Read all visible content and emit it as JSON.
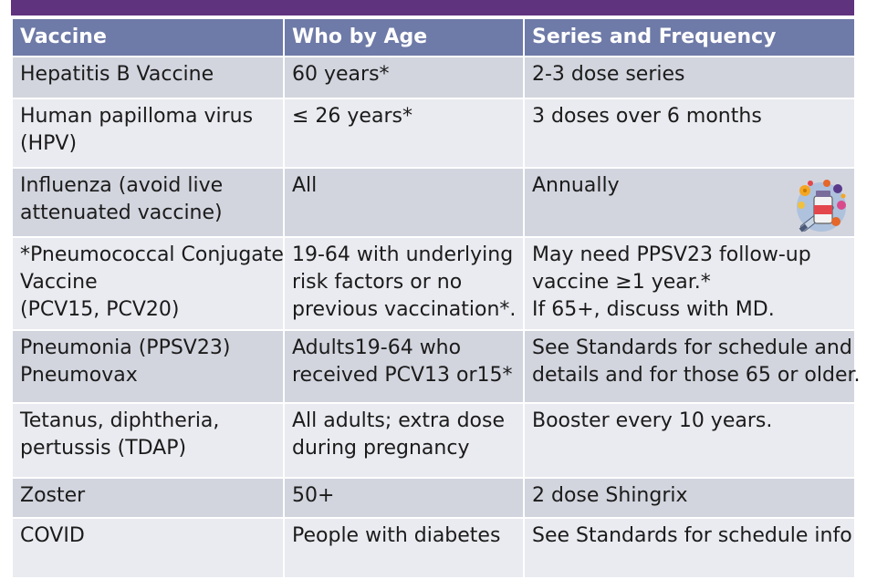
{
  "header": {
    "vaccine": "Vaccine",
    "who_by_age": "Who by Age",
    "series": "Series and Frequency"
  },
  "rows": [
    {
      "vaccine": [
        "Hepatitis B Vaccine"
      ],
      "who": [
        "60 years*"
      ],
      "series": [
        "2-3 dose series"
      ]
    },
    {
      "vaccine": [
        "Human papilloma virus",
        "(HPV)"
      ],
      "who": [
        "≤ 26 years*"
      ],
      "series": [
        "3 doses over 6 months"
      ]
    },
    {
      "vaccine": [
        "Influenza (avoid live",
        "attenuated vaccine)"
      ],
      "who": [
        "All"
      ],
      "series": [
        "Annually"
      ],
      "icon": "vaccine-vial-syringe-icon"
    },
    {
      "vaccine": [
        "*Pneumococcal Conjugate",
        "Vaccine",
        "(PCV15, PCV20)"
      ],
      "who": [
        "19-64 with underlying",
        "risk factors or no",
        "previous vaccination*."
      ],
      "series": [
        "May need PPSV23 follow-up",
        "vaccine ≥1 year.*",
        "If 65+, discuss with MD."
      ]
    },
    {
      "vaccine": [
        "Pneumonia (PPSV23)",
        "Pneumovax"
      ],
      "who": [
        "Adults19-64 who",
        "received PCV13 or15*"
      ],
      "series": [
        "See Standards for schedule and",
        "details and for those 65 or older."
      ]
    },
    {
      "vaccine": [
        "Tetanus, diphtheria,",
        "pertussis (TDAP)"
      ],
      "who": [
        "All adults; extra dose",
        "during pregnancy"
      ],
      "series": [
        "Booster every 10 years."
      ]
    },
    {
      "vaccine": [
        "Zoster"
      ],
      "who": [
        "50+"
      ],
      "series": [
        "2 dose Shingrix"
      ]
    },
    {
      "vaccine": [
        "COVID"
      ],
      "who": [
        "People with diabetes"
      ],
      "series": [
        "See Standards for schedule info"
      ]
    }
  ],
  "colors": {
    "title_bar": "#60337f",
    "header_bg": "#6e7aa7",
    "row_dark": "#d2d5de",
    "row_light": "#eaebf0"
  }
}
